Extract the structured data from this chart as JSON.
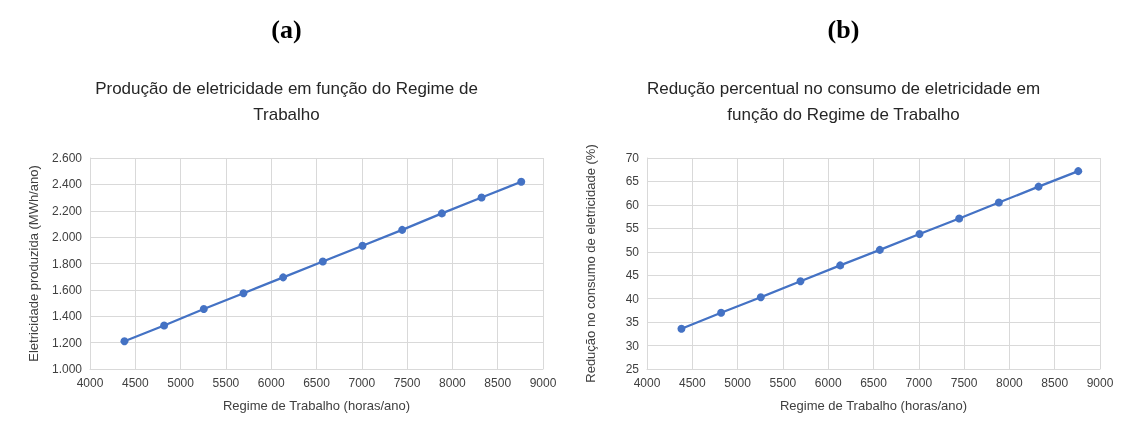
{
  "chart_data": [
    {
      "type": "line",
      "annotations": [
        "(a)"
      ],
      "title": "Produção de eletricidade em função do Regime de Trabalho",
      "xlabel": "Regime de Trabalho (horas/ano)",
      "ylabel": "Eletricidade produzida (MWh/ano)",
      "x": [
        4380,
        4818,
        5256,
        5694,
        6132,
        6570,
        7008,
        7446,
        7884,
        8322,
        8760
      ],
      "series": [
        {
          "color": "#4472c4",
          "values": [
            1210,
            1330,
            1455,
            1575,
            1695,
            1815,
            1935,
            2055,
            2180,
            2300,
            2420
          ]
        }
      ],
      "xlim": [
        4000,
        9000
      ],
      "xticks": [
        4000,
        4500,
        5000,
        5500,
        6000,
        6500,
        7000,
        7500,
        8000,
        8500,
        9000
      ],
      "ylim": [
        1000,
        2600
      ],
      "yticks": [
        {
          "value": 1000,
          "label": "1.000"
        },
        {
          "value": 1200,
          "label": "1.200"
        },
        {
          "value": 1400,
          "label": "1.400"
        },
        {
          "value": 1600,
          "label": "1.600"
        },
        {
          "value": 1800,
          "label": "1.800"
        },
        {
          "value": 2000,
          "label": "2.000"
        },
        {
          "value": 2200,
          "label": "2.200"
        },
        {
          "value": 2400,
          "label": "2.400"
        },
        {
          "value": 2600,
          "label": "2.600"
        }
      ],
      "grid": true,
      "marker": "circle",
      "line_style": "solid"
    },
    {
      "type": "line",
      "annotations": [
        "(b)"
      ],
      "title": "Redução percentual no consumo de eletricidade em função do Regime de Trabalho",
      "xlabel": "Regime de Trabalho (horas/ano)",
      "ylabel": "Redução no consumo de eletricidade (%)",
      "x": [
        4380,
        4818,
        5256,
        5694,
        6132,
        6570,
        7008,
        7446,
        7884,
        8322,
        8760
      ],
      "series": [
        {
          "color": "#4472c4",
          "values": [
            33.6,
            37.0,
            40.3,
            43.7,
            47.1,
            50.4,
            53.8,
            57.1,
            60.5,
            63.9,
            67.2
          ]
        }
      ],
      "xlim": [
        4000,
        9000
      ],
      "xticks": [
        4000,
        4500,
        5000,
        5500,
        6000,
        6500,
        7000,
        7500,
        8000,
        8500,
        9000
      ],
      "ylim": [
        25,
        70
      ],
      "yticks": [
        25,
        30,
        35,
        40,
        45,
        50,
        55,
        60,
        65,
        70
      ],
      "grid": true,
      "marker": "circle",
      "line_style": "solid"
    }
  ]
}
